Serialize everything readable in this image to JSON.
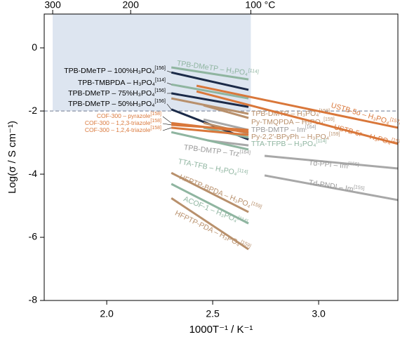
{
  "chart_data": {
    "type": "line",
    "xlabel": "1000T⁻¹ / K⁻¹",
    "ylabel": "Log(σ / S cm⁻¹)",
    "xlim": [
      1.705,
      3.374
    ],
    "ylim": [
      -8,
      1.07
    ],
    "xticks": [
      {
        "value": 2.0,
        "label": "2.0"
      },
      {
        "value": 2.5,
        "label": "2.5"
      },
      {
        "value": 3.0,
        "label": "3.0"
      }
    ],
    "yticks": [
      0,
      -2,
      -4,
      -6,
      -8
    ],
    "x2ticks": [
      {
        "value": 1.745,
        "label": "300"
      },
      {
        "value": 2.113,
        "label": "200"
      },
      {
        "value": 2.68,
        "label": "100 °C"
      }
    ],
    "hline": -2,
    "shade": {
      "xlim": [
        1.745,
        2.68
      ],
      "ylim": [
        -2,
        1.07
      ],
      "color": "#dde5f0"
    },
    "series": [
      {
        "name": "TPB-DMeTP – 100%H₃PO₄",
        "ref": "[156]",
        "color": "#1b2a48",
        "x": [
          2.305,
          2.669
        ],
        "values": [
          -0.78,
          -1.33
        ]
      },
      {
        "name": "TPB-DMeTP – H₃PO₄",
        "ref": "[114]",
        "color": "#8fb5a0",
        "x": [
          2.305,
          2.669
        ],
        "values": [
          -0.62,
          -1.0
        ]
      },
      {
        "name": "TPB-TMBPDA – H₃PO₄",
        "ref": "[114]",
        "color": "#8fb5a0",
        "x": [
          2.305,
          2.669
        ],
        "values": [
          -1.16,
          -1.6
        ]
      },
      {
        "name": "TPB-DMeTP – 75%H₃PO₄",
        "ref": "[156]",
        "color": "#1b2a48",
        "x": [
          2.305,
          2.669
        ],
        "values": [
          -1.44,
          -1.87
        ]
      },
      {
        "name": "TPB-DMeTP – 50%H₃PO₄",
        "ref": "[156]",
        "color": "#1b2a48",
        "x": [
          2.305,
          2.669
        ],
        "values": [
          -1.95,
          -2.9
        ]
      },
      {
        "name": "TPB-DMTP – H₃PO₄",
        "ref": "[159]",
        "color": "#b8906c",
        "x": [
          2.305,
          2.669
        ],
        "values": [
          -1.6,
          -2.09
        ]
      },
      {
        "name": "Py-TMQPDA – H₃PO₄",
        "ref": "[159]",
        "color": "#b8906c",
        "x": [
          2.457,
          2.669
        ],
        "values": [
          -1.82,
          -2.22
        ]
      },
      {
        "name": "TPB-DMTP – Im",
        "ref": "[164]",
        "color": "#a8a8a8",
        "x": [
          2.457,
          2.669
        ],
        "values": [
          -2.27,
          -2.6
        ]
      },
      {
        "name": "Py-2,2′-BPyPh – H₃PO₄",
        "ref": "[159]",
        "color": "#b8906c",
        "x": [
          2.457,
          2.669
        ],
        "values": [
          -2.38,
          -2.71
        ]
      },
      {
        "name": "TTA-TFPB – H₃PO₄",
        "ref": "[114]",
        "color": "#8fb5a0",
        "x": [
          2.457,
          2.669
        ],
        "values": [
          -2.53,
          -2.84
        ]
      },
      {
        "name": "TPB-DMTP – Trz",
        "ref": "[164]",
        "color": "#a8a8a8",
        "x": [
          2.474,
          2.669
        ],
        "values": [
          -2.93,
          -3.09
        ]
      },
      {
        "name": "TTA-TFB – H₃PO₄",
        "ref": "[114]",
        "color": "#8fb5a0",
        "x": [
          2.305,
          2.669
        ],
        "values": [
          -2.67,
          -3.22
        ]
      },
      {
        "name": "COF-300 – pyrazole",
        "ref": "[158]",
        "color": "#d9773a",
        "x": [
          2.305,
          2.669
        ],
        "values": [
          -2.38,
          -2.67
        ]
      },
      {
        "name": "COF-300 – 1,2,3-triazole",
        "ref": "[158]",
        "color": "#d9773a",
        "x": [
          2.305,
          2.669
        ],
        "values": [
          -2.44,
          -2.6
        ]
      },
      {
        "name": "COF-300 – 1,2,4-triazole",
        "ref": "[158]",
        "color": "#d9773a",
        "x": [
          2.305,
          2.669
        ],
        "values": [
          -2.53,
          -2.76
        ]
      },
      {
        "name": "HFPTP-BPDA – H₃PO₄",
        "ref": "[159]",
        "color": "#b8906c",
        "x": [
          2.305,
          2.669
        ],
        "values": [
          -3.96,
          -5.2
        ]
      },
      {
        "name": "ACOF-1 – H₃PO₄",
        "ref": "[114]",
        "color": "#8fb5a0",
        "x": [
          2.305,
          2.669
        ],
        "values": [
          -4.31,
          -5.56
        ]
      },
      {
        "name": "HFPTP-PDA – H₃PO₄",
        "ref": "[159]",
        "color": "#b8906c",
        "x": [
          2.305,
          2.669
        ],
        "values": [
          -4.76,
          -6.38
        ]
      },
      {
        "name": "USTB-5o – H₃PO₄",
        "ref": "[157]",
        "color": "#d9773a",
        "x": [
          2.424,
          3.374
        ],
        "values": [
          -1.2,
          -2.53
        ]
      },
      {
        "name": "USTB-5r – H₃PO₄",
        "ref": "[157]",
        "color": "#d9773a",
        "x": [
          2.424,
          3.374
        ],
        "values": [
          -1.38,
          -3.04
        ]
      },
      {
        "name": "Td-PPI – Im",
        "ref": "[155]",
        "color": "#a8a8a8",
        "x": [
          2.745,
          3.374
        ],
        "values": [
          -3.42,
          -3.82
        ]
      },
      {
        "name": "Td-PNDI – Im",
        "ref": "[155]",
        "color": "#a8a8a8",
        "x": [
          2.745,
          3.374
        ],
        "values": [
          -4.04,
          -4.82
        ]
      }
    ]
  }
}
